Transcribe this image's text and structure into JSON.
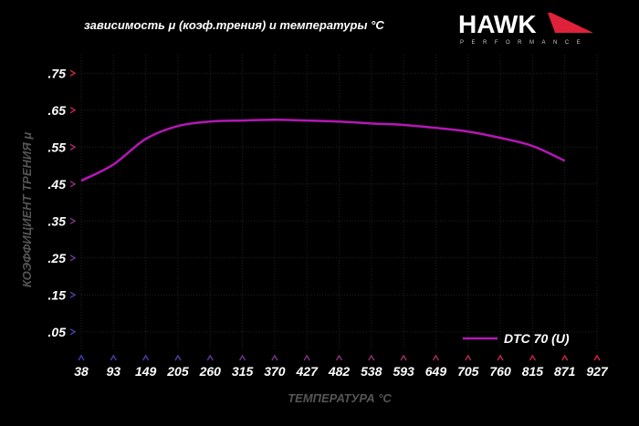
{
  "title": "зависимость μ (коэф.трения) и температуры °C",
  "logo": {
    "text": "HAWK",
    "subtext": "PERFORMANCE",
    "accent": "#e0213a"
  },
  "colors": {
    "series": "#b517b5",
    "axis_top": "#d0203a",
    "axis_bottom": "#3a3fb0",
    "background": "#000000"
  },
  "chart_data": {
    "type": "line",
    "title": "зависимость μ (коэф.трения) и температуры °C",
    "xlabel": "ТЕМПЕРАТУРА °C",
    "ylabel": "КОЭФФИЦИЕНТ ТРЕНИЯ μ",
    "x_ticks": [
      "38",
      "93",
      "149",
      "205",
      "260",
      "315",
      "370",
      "427",
      "482",
      "538",
      "593",
      "649",
      "705",
      "760",
      "815",
      "871",
      "927"
    ],
    "y_ticks": [
      ".75",
      ".65",
      ".55",
      ".45",
      ".35",
      ".25",
      ".15",
      ".05"
    ],
    "y_tick_values": [
      0.75,
      0.65,
      0.55,
      0.45,
      0.35,
      0.25,
      0.15,
      0.05
    ],
    "xlim": [
      38,
      927
    ],
    "ylim": [
      0,
      0.8
    ],
    "grid": true,
    "legend_position": "bottom-right",
    "series": [
      {
        "name": "DTC 70 (U)",
        "x": [
          38,
          93,
          149,
          205,
          260,
          315,
          370,
          427,
          482,
          538,
          593,
          649,
          705,
          760,
          815,
          871
        ],
        "y": [
          0.459,
          0.503,
          0.572,
          0.607,
          0.619,
          0.622,
          0.624,
          0.622,
          0.619,
          0.614,
          0.61,
          0.602,
          0.592,
          0.575,
          0.553,
          0.513
        ]
      }
    ]
  }
}
